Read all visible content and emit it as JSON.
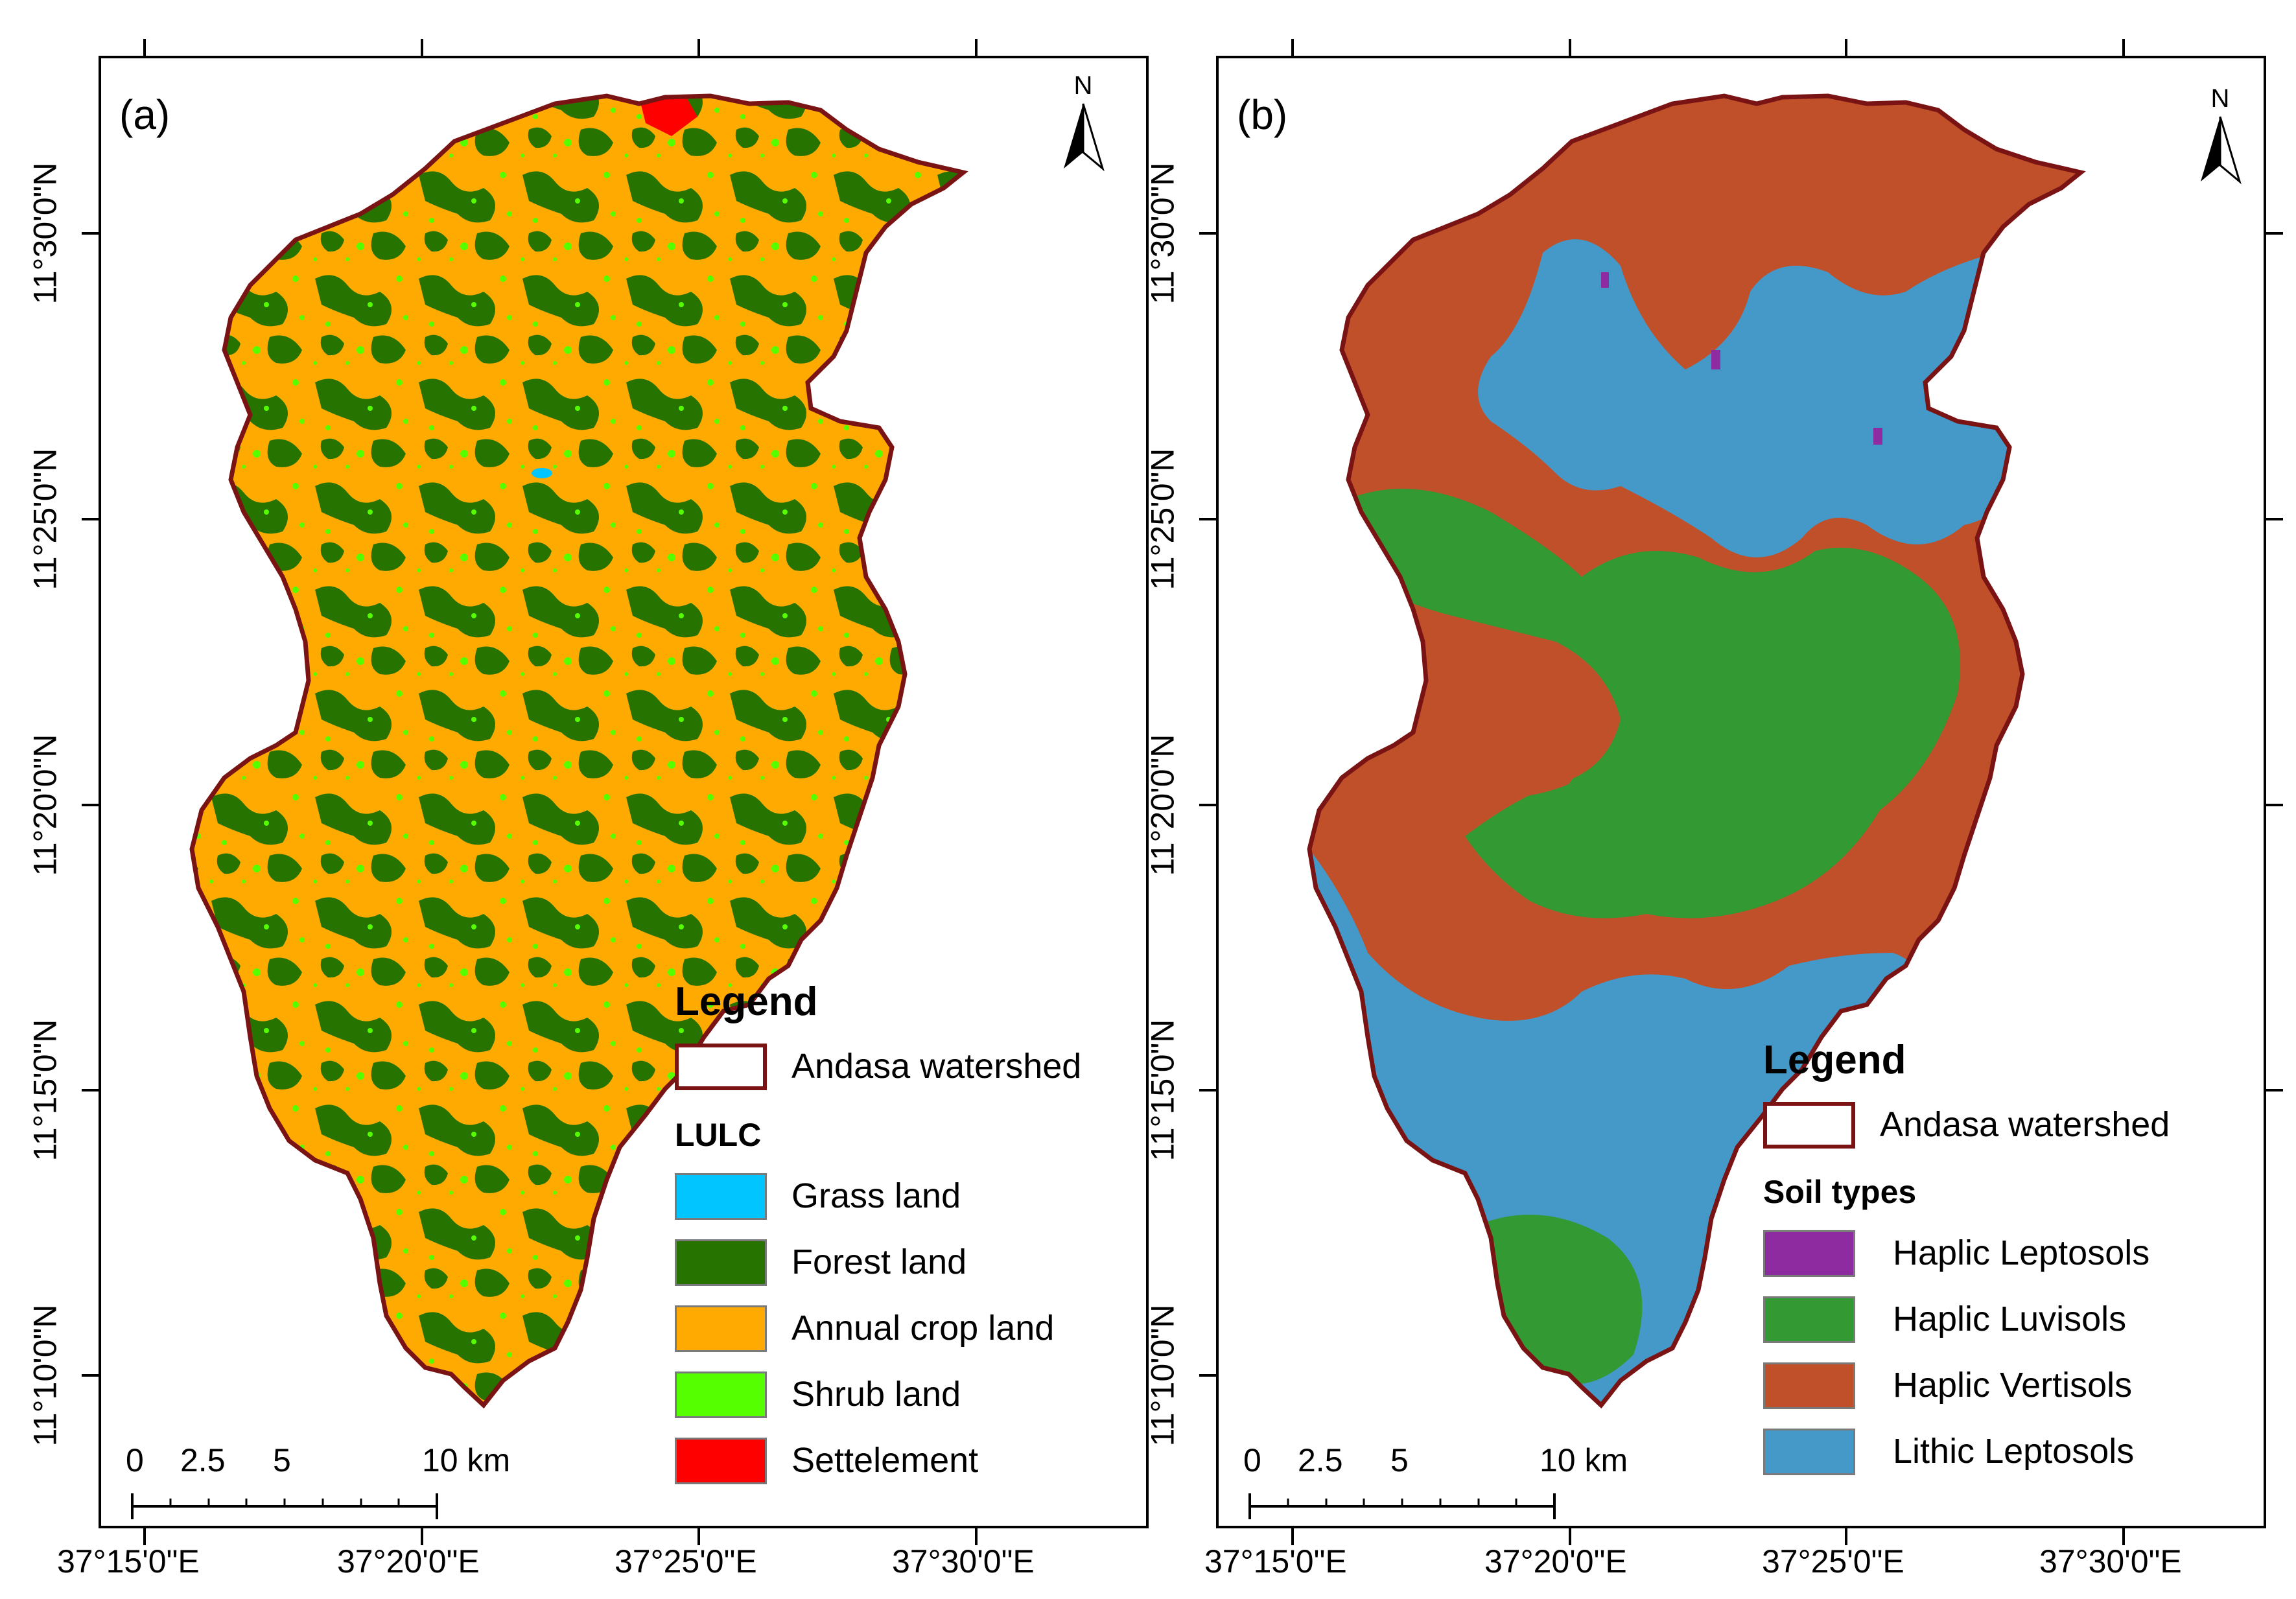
{
  "colors": {
    "boundary": "#7a1414",
    "grass_land": "#00c5ff",
    "forest_land": "#267300",
    "annual_crop_land": "#ffaa00",
    "shrub_land": "#55ff00",
    "settlement": "#ff0000",
    "haplic_leptosols": "#8e2ba0",
    "haplic_luvisols": "#339933",
    "haplic_vertisols": "#c0502a",
    "lithic_leptosols": "#4499c8"
  },
  "coordinates": {
    "longitudes": [
      "37°15'0\"E",
      "37°20'0\"E",
      "37°25'0\"E",
      "37°30'0\"E"
    ],
    "latitudes": [
      "11°30'0\"N",
      "11°25'0\"N",
      "11°20'0\"N",
      "11°15'0\"N",
      "11°10'0\"N"
    ]
  },
  "panel_a": {
    "label": "(a)",
    "north": "N",
    "legend": {
      "title": "Legend",
      "boundary_label": "Andasa watershed",
      "class_title": "LULC",
      "classes": [
        "Grass land",
        "Forest land",
        "Annual crop land",
        "Shrub land",
        "Settelement"
      ]
    },
    "scale": {
      "labels": [
        "0",
        "2.5",
        "5",
        "10 km"
      ]
    }
  },
  "panel_b": {
    "label": "(b)",
    "north": "N",
    "legend": {
      "title": "Legend",
      "boundary_label": "Andasa watershed",
      "class_title": "Soil types",
      "classes": [
        "Haplic Leptosols",
        "Haplic Luvisols",
        "Haplic Vertisols",
        "Lithic Leptosols"
      ]
    },
    "scale": {
      "labels": [
        "0",
        "2.5",
        "5",
        "10 km"
      ]
    }
  }
}
